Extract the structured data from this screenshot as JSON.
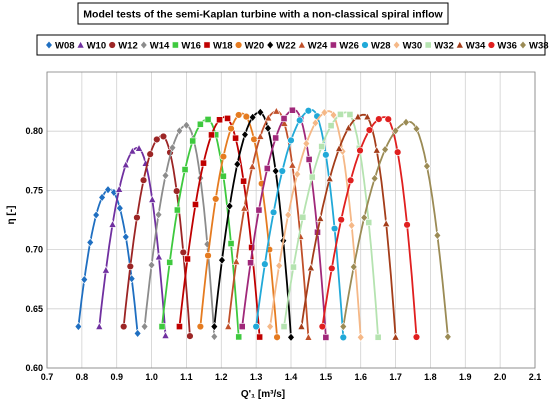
{
  "chart_data": {
    "type": "line",
    "title": "Model tests of the semi-Kaplan turbine with a non-classical spiral inflow",
    "xlabel": "Q'₁ [m³/s]",
    "ylabel": "η [-]",
    "xlim": [
      0.7,
      2.1
    ],
    "ylim": [
      0.6,
      0.85
    ],
    "x_ticks": [
      "0.7",
      "0.8",
      "0.9",
      "1.0",
      "1.1",
      "1.2",
      "1.3",
      "1.4",
      "1.5",
      "1.6",
      "1.7",
      "1.8",
      "1.9",
      "2.0",
      "2.1"
    ],
    "y_ticks": [
      "0.60",
      "0.65",
      "0.70",
      "0.75",
      "0.80"
    ],
    "grid": true,
    "legend_position": "top",
    "series": [
      {
        "name": "W08",
        "marker": "diamond",
        "color": "#1f6fc1",
        "x0": 0.79,
        "x1": 0.96,
        "peak_x": 0.88,
        "peak_y": 0.751
      },
      {
        "name": "W10",
        "marker": "triangle",
        "color": "#7030a0",
        "x0": 0.85,
        "x1": 1.04,
        "peak_x": 0.96,
        "peak_y": 0.786
      },
      {
        "name": "W12",
        "marker": "circle",
        "color": "#9c2525",
        "x0": 0.92,
        "x1": 1.11,
        "peak_x": 1.03,
        "peak_y": 0.796
      },
      {
        "name": "W14",
        "marker": "diamond",
        "color": "#8c8c8c",
        "x0": 0.98,
        "x1": 1.18,
        "peak_x": 1.1,
        "peak_y": 0.805
      },
      {
        "name": "W16",
        "marker": "square",
        "color": "#3ec93e",
        "x0": 1.03,
        "x1": 1.25,
        "peak_x": 1.16,
        "peak_y": 0.81
      },
      {
        "name": "W18",
        "marker": "square",
        "color": "#c00000",
        "x0": 1.08,
        "x1": 1.31,
        "peak_x": 1.21,
        "peak_y": 0.812
      },
      {
        "name": "W20",
        "marker": "circle",
        "color": "#e57b20",
        "x0": 1.14,
        "x1": 1.36,
        "peak_x": 1.26,
        "peak_y": 0.815
      },
      {
        "name": "W22",
        "marker": "diamond",
        "color": "#000000",
        "x0": 1.18,
        "x1": 1.4,
        "peak_x": 1.31,
        "peak_y": 0.816
      },
      {
        "name": "W24",
        "marker": "triangle",
        "color": "#c0502a",
        "x0": 1.22,
        "x1": 1.45,
        "peak_x": 1.36,
        "peak_y": 0.817
      },
      {
        "name": "W26",
        "marker": "square",
        "color": "#a0287a",
        "x0": 1.26,
        "x1": 1.5,
        "peak_x": 1.41,
        "peak_y": 0.818
      },
      {
        "name": "W28",
        "marker": "circle",
        "color": "#21a9d8",
        "x0": 1.3,
        "x1": 1.55,
        "peak_x": 1.46,
        "peak_y": 0.818
      },
      {
        "name": "W30",
        "marker": "diamond",
        "color": "#f5b887",
        "x0": 1.34,
        "x1": 1.6,
        "peak_x": 1.51,
        "peak_y": 0.817
      },
      {
        "name": "W32",
        "marker": "square",
        "color": "#b5e3b0",
        "x0": 1.38,
        "x1": 1.65,
        "peak_x": 1.56,
        "peak_y": 0.816
      },
      {
        "name": "W34",
        "marker": "triangle",
        "color": "#a43d1a",
        "x0": 1.43,
        "x1": 1.7,
        "peak_x": 1.61,
        "peak_y": 0.814
      },
      {
        "name": "W36",
        "marker": "circle",
        "color": "#e01f1f",
        "x0": 1.49,
        "x1": 1.76,
        "peak_x": 1.67,
        "peak_y": 0.812
      },
      {
        "name": "W38",
        "marker": "diamond",
        "color": "#9b8b55",
        "x0": 1.55,
        "x1": 1.85,
        "peak_x": 1.74,
        "peak_y": 0.808
      }
    ]
  }
}
